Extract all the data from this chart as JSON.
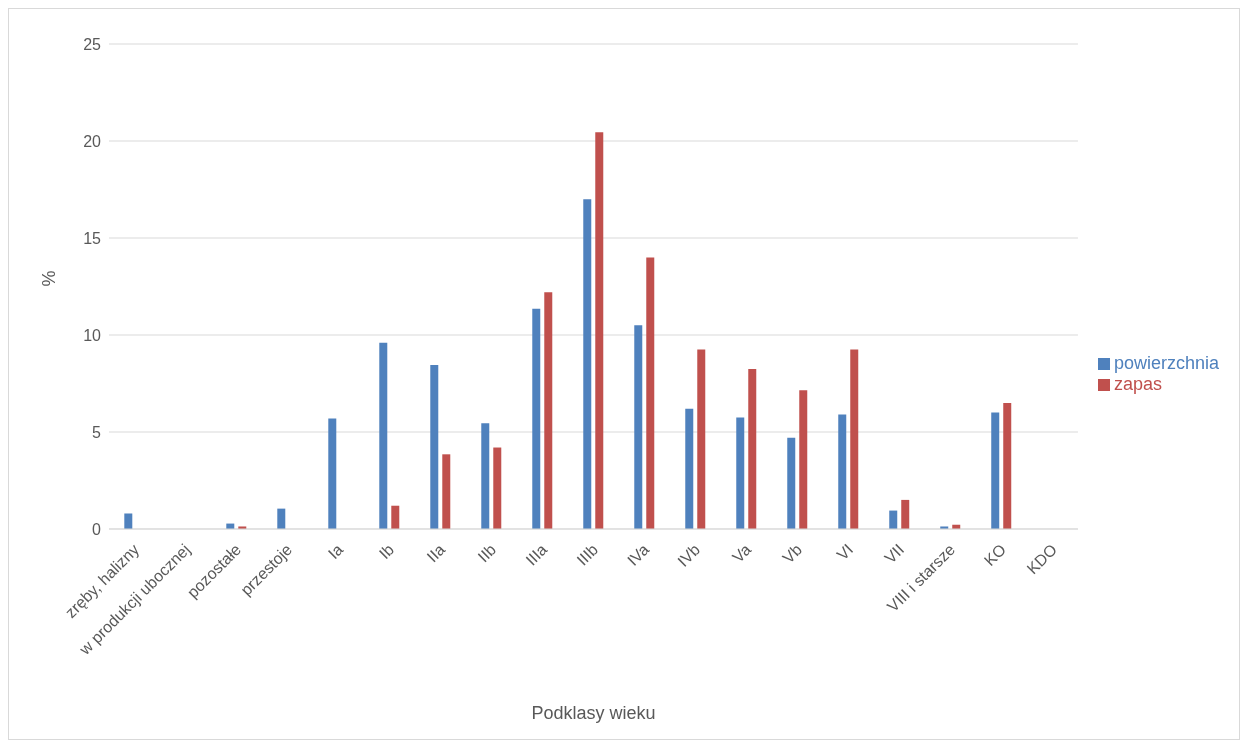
{
  "chart_data": {
    "type": "bar",
    "xlabel": "Podklasy wieku",
    "ylabel": "%",
    "categories": [
      "zręby, halizny",
      "w produkcji ubocznej",
      "pozostałe",
      "przestoje",
      "Ia",
      "Ib",
      "IIa",
      "IIb",
      "IIIa",
      "IIIb",
      "IVa",
      "IVb",
      "Va",
      "Vb",
      "VI",
      "VII",
      "VIII i starsze",
      "KO",
      "KDO"
    ],
    "series": [
      {
        "name": "powierzchnia",
        "color": "#4f81bd",
        "values": [
          0.8,
          null,
          0.28,
          1.05,
          5.7,
          9.6,
          8.45,
          5.45,
          11.35,
          17.0,
          10.5,
          6.2,
          5.75,
          4.7,
          5.9,
          0.95,
          0.13,
          6.0,
          null
        ]
      },
      {
        "name": "zapas",
        "color": "#c0504d",
        "values": [
          null,
          0,
          0.13,
          0,
          0,
          1.2,
          3.85,
          4.2,
          12.2,
          20.45,
          14.0,
          9.25,
          8.25,
          7.15,
          9.25,
          1.5,
          0.22,
          6.5,
          null
        ]
      }
    ],
    "ylim": [
      0,
      25
    ],
    "yticks": [
      0,
      5,
      10,
      15,
      20,
      25
    ],
    "grid": "y",
    "legend": "right"
  }
}
